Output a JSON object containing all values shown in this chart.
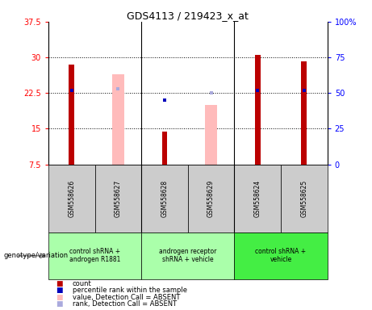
{
  "title": "GDS4113 / 219423_x_at",
  "samples": [
    "GSM558626",
    "GSM558627",
    "GSM558628",
    "GSM558629",
    "GSM558624",
    "GSM558625"
  ],
  "count_values": [
    28.5,
    null,
    14.3,
    null,
    30.5,
    29.2
  ],
  "absent_value_values": [
    null,
    26.5,
    null,
    20.0,
    null,
    null
  ],
  "percentile_rank_values": [
    23.0,
    null,
    21.0,
    null,
    23.0,
    23.0
  ],
  "absent_rank_values": [
    null,
    23.3,
    null,
    22.5,
    null,
    null
  ],
  "ylim_left": [
    7.5,
    37.5
  ],
  "ylim_right": [
    0,
    100
  ],
  "yticks_left": [
    7.5,
    15.0,
    22.5,
    30.0,
    37.5
  ],
  "yticks_right": [
    0,
    25,
    50,
    75,
    100
  ],
  "left_tick_labels": [
    "7.5",
    "15",
    "22.5",
    "30",
    "37.5"
  ],
  "right_tick_labels": [
    "0",
    "25",
    "50",
    "75",
    "100%"
  ],
  "hlines": [
    15.0,
    22.5,
    30.0
  ],
  "count_color": "#bb0000",
  "absent_value_color": "#ffbbbb",
  "percentile_color": "#0000bb",
  "absent_rank_color": "#aaaadd",
  "sample_bg_color": "#cccccc",
  "group_info": [
    {
      "start": 0,
      "end": 1,
      "label": "control shRNA +\nandrogen R1881",
      "color": "#aaffaa"
    },
    {
      "start": 2,
      "end": 3,
      "label": "androgen receptor\nshRNA + vehicle",
      "color": "#aaffaa"
    },
    {
      "start": 4,
      "end": 5,
      "label": "control shRNA +\nvehicle",
      "color": "#44ee44"
    }
  ],
  "legend_items": [
    {
      "color": "#bb0000",
      "label": "count"
    },
    {
      "color": "#0000bb",
      "label": "percentile rank within the sample"
    },
    {
      "color": "#ffbbbb",
      "label": "value, Detection Call = ABSENT"
    },
    {
      "color": "#aaaadd",
      "label": "rank, Detection Call = ABSENT"
    }
  ],
  "count_bar_width": 0.12,
  "absent_bar_width": 0.25
}
